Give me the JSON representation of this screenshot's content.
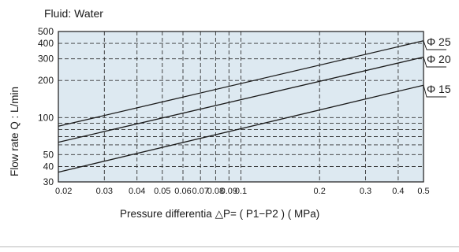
{
  "chart_data": {
    "type": "line",
    "title": "Fluid: Water",
    "xlabel": "Pressure differentia  △P= ( P1−P2 )    ( MPa)",
    "ylabel": "Flow rate Q : L/min",
    "x_scale": "log",
    "y_scale": "log",
    "xlim": [
      0.02,
      0.5
    ],
    "ylim": [
      30,
      500
    ],
    "x_ticks": [
      0.02,
      0.03,
      0.04,
      0.05,
      0.06,
      0.07,
      0.08,
      0.09,
      0.1,
      0.2,
      0.3,
      0.4,
      0.5
    ],
    "x_tick_labels": [
      "0.02",
      "0.03",
      "0.04",
      "0.05",
      "0.06",
      "0.07",
      "0.08",
      "0.09",
      "0.1",
      "0.2",
      "0.3",
      "0.4",
      "0.5"
    ],
    "y_ticks": [
      30,
      40,
      50,
      100,
      200,
      300,
      400,
      500
    ],
    "y_tick_labels": [
      "30",
      "40",
      "50",
      "100",
      "200",
      "300",
      "400",
      "500"
    ],
    "y_extra_gridlines": [
      60,
      70,
      80,
      90
    ],
    "grid": true,
    "legend": "labels at right end of lines",
    "colors": {
      "background": "#dde9f1",
      "line": "#1a1a1a",
      "grid": "#333333"
    },
    "series": [
      {
        "name": "Φ 25",
        "x": [
          0.02,
          0.5
        ],
        "y": [
          85,
          420
        ]
      },
      {
        "name": "Φ 20",
        "x": [
          0.02,
          0.5
        ],
        "y": [
          63,
          310
        ]
      },
      {
        "name": "Φ 15",
        "x": [
          0.02,
          0.5
        ],
        "y": [
          36,
          183
        ]
      }
    ]
  }
}
